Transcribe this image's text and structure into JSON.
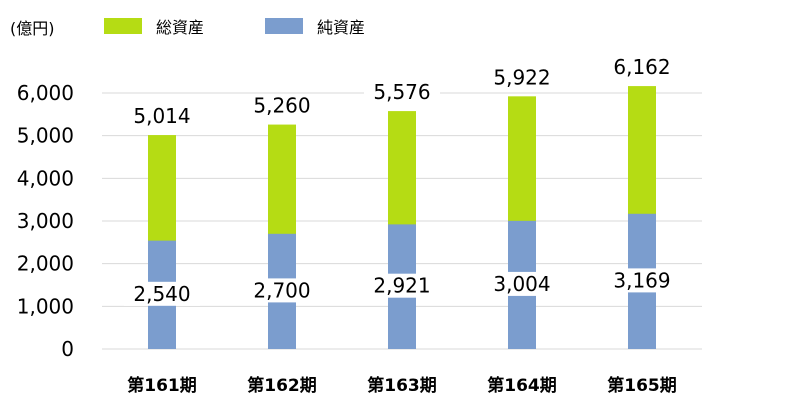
{
  "chart_data": {
    "type": "bar",
    "stacked": false,
    "unit_label": "(億円)",
    "categories": [
      "第161期",
      "第162期",
      "第163期",
      "第164期",
      "第165期"
    ],
    "series": [
      {
        "name": "総資産",
        "color": "#b5dc14",
        "values": [
          5014,
          5260,
          5576,
          5922,
          6162
        ],
        "labels": [
          "5,014",
          "5,260",
          "5,576",
          "5,922",
          "6,162"
        ]
      },
      {
        "name": "純資産",
        "color": "#7b9dce",
        "values": [
          2540,
          2700,
          2921,
          3004,
          3169
        ],
        "labels": [
          "2,540",
          "2,700",
          "2,921",
          "3,004",
          "3,169"
        ]
      }
    ],
    "yticks": [
      "0",
      "1,000",
      "2,000",
      "3,000",
      "4,000",
      "5,000",
      "6,000"
    ],
    "ylim": [
      0,
      6000
    ],
    "grid": true,
    "legend_position": "top"
  }
}
